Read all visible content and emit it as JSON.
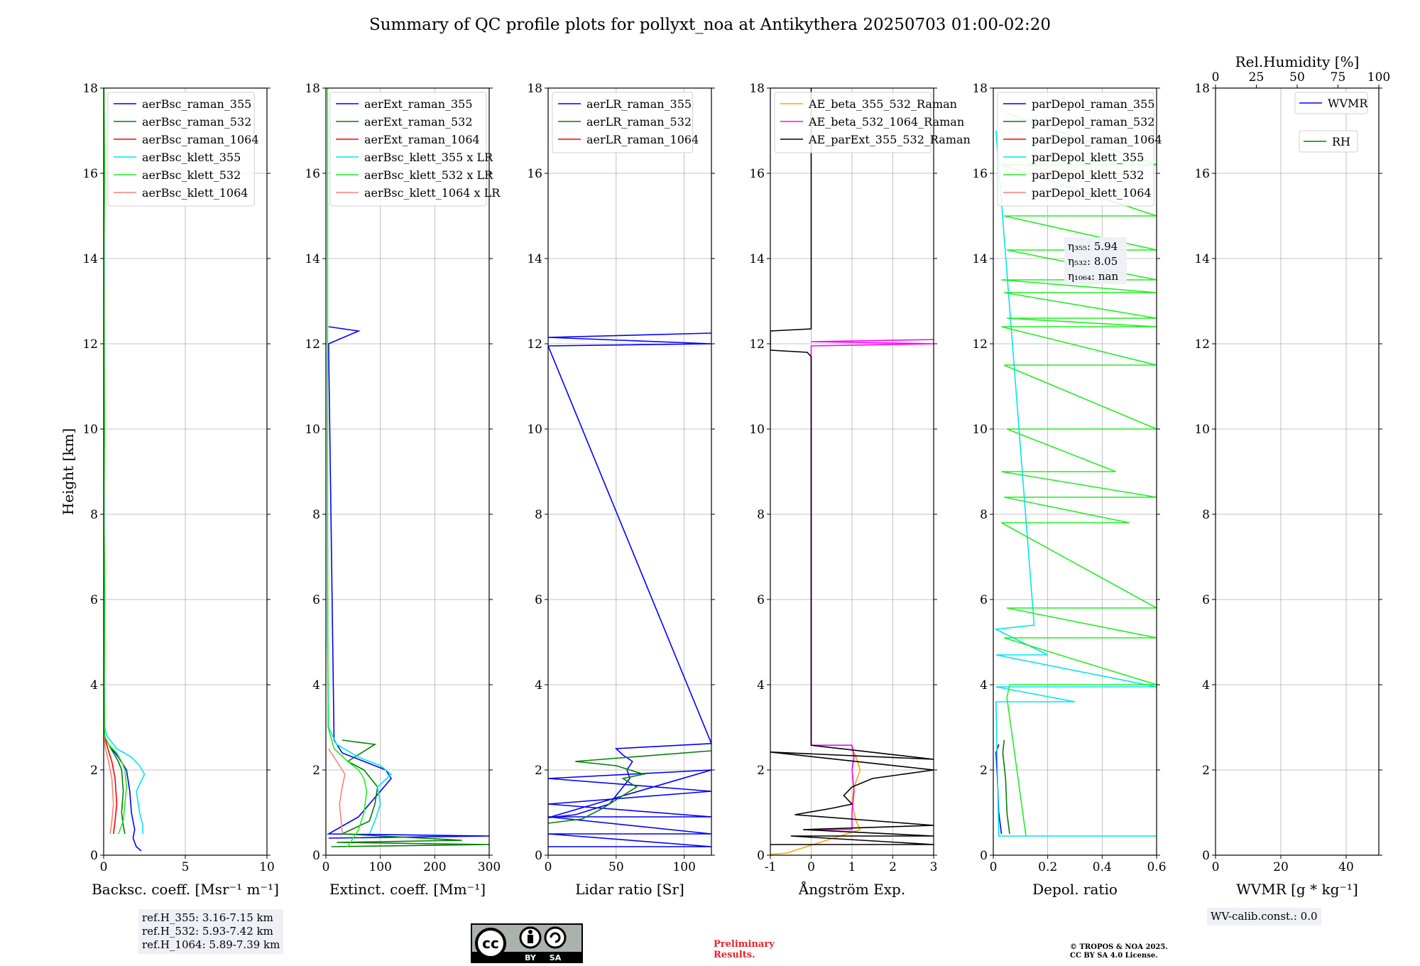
{
  "title": "Summary of QC profile plots for pollyxt_noa at Antikythera 20250703 01:00-02:20",
  "chart_data": [
    {
      "type": "line",
      "xlabel": "Backsc. coeff. [Msr⁻¹ m⁻¹]",
      "ylabel": "Height [km]",
      "xlim": [
        0,
        10
      ],
      "ylim": [
        0,
        18
      ],
      "xticks": [
        0,
        5,
        10
      ],
      "yticks": [
        0,
        2,
        4,
        6,
        8,
        10,
        12,
        14,
        16,
        18
      ],
      "grid": true,
      "legend_position": "upper-left",
      "series": [
        {
          "name": "aerBsc_raman_355",
          "color": "#0000ff",
          "x": [
            2.3,
            2.0,
            1.8,
            1.9,
            1.7,
            1.6,
            1.4,
            0.9,
            0.3,
            0.05,
            0.05
          ],
          "y": [
            0.1,
            0.2,
            0.4,
            0.6,
            1.0,
            1.5,
            2.0,
            2.3,
            2.6,
            2.8,
            3.0
          ]
        },
        {
          "name": "aerBsc_raman_532",
          "color": "#008000",
          "x": [
            1.3,
            1.2,
            1.1,
            1.2,
            1.1,
            0.9,
            0.6,
            0.3,
            0.05,
            0.05
          ],
          "y": [
            0.5,
            0.7,
            1.0,
            1.5,
            2.0,
            2.2,
            2.4,
            2.6,
            2.8,
            3.0
          ]
        },
        {
          "name": "aerBsc_raman_1064",
          "color": "#ff0000",
          "x": [
            0.6,
            0.7,
            0.8,
            0.7,
            0.5,
            0.25,
            0.05
          ],
          "y": [
            0.5,
            0.8,
            1.2,
            1.8,
            2.2,
            2.5,
            2.8
          ]
        },
        {
          "name": "aerBsc_klett_355",
          "color": "#00e5ee",
          "x": [
            2.4,
            2.4,
            2.2,
            2.0,
            2.5,
            2.2,
            1.7,
            0.8,
            0.2,
            0.05,
            0.03,
            0.03
          ],
          "y": [
            0.5,
            0.7,
            1.0,
            1.5,
            1.9,
            2.1,
            2.3,
            2.5,
            2.8,
            3.0,
            5.0,
            17.5
          ]
        },
        {
          "name": "aerBsc_klett_532",
          "color": "#22ee22",
          "x": [
            0.9,
            1.2,
            1.3,
            1.4,
            1.3,
            1.1,
            0.8,
            0.3,
            0.06,
            0.04,
            0.08,
            0.02,
            0.05,
            0.02,
            0.06,
            0.02
          ],
          "y": [
            0.5,
            0.8,
            1.2,
            1.6,
            2.0,
            2.2,
            2.4,
            2.6,
            2.8,
            4.0,
            6.0,
            8.0,
            10.0,
            14.0,
            16.0,
            18.0
          ]
        },
        {
          "name": "aerBsc_klett_1064",
          "color": "#fa8072",
          "x": [
            0.4,
            0.5,
            0.6,
            0.5,
            0.3,
            0.1,
            0.03
          ],
          "y": [
            0.5,
            0.8,
            1.2,
            1.8,
            2.2,
            2.5,
            2.8
          ]
        }
      ]
    },
    {
      "type": "line",
      "xlabel": "Extinct. coeff. [Mm⁻¹]",
      "xlim": [
        0,
        300
      ],
      "ylim": [
        0,
        18
      ],
      "xticks": [
        0,
        100,
        200,
        300
      ],
      "yticks": [
        0,
        2,
        4,
        6,
        8,
        10,
        12,
        14,
        16,
        18
      ],
      "grid": true,
      "legend_position": "upper-left",
      "series": [
        {
          "name": "aerExt_raman_355",
          "color": "#0000ff",
          "x": [
            5,
            300,
            5,
            60,
            80,
            100,
            120,
            110,
            70,
            30,
            20,
            15,
            5,
            60,
            5
          ],
          "y": [
            0.4,
            0.45,
            0.5,
            0.9,
            1.2,
            1.5,
            1.8,
            2.0,
            2.2,
            2.4,
            2.6,
            2.7,
            12.0,
            12.3,
            12.4
          ]
        },
        {
          "name": "aerExt_raman_532",
          "color": "#008000",
          "x": [
            10,
            300,
            20,
            250,
            30,
            80,
            90,
            95,
            70,
            40,
            90,
            30
          ],
          "y": [
            0.2,
            0.25,
            0.3,
            0.35,
            0.5,
            0.8,
            1.2,
            1.6,
            2.0,
            2.2,
            2.6,
            2.7
          ]
        },
        {
          "name": "aerExt_raman_1064",
          "color": "#ff0000",
          "x": [],
          "y": []
        },
        {
          "name": "aerBsc_klett_355 x LR",
          "color": "#00e5ee",
          "x": [
            80,
            90,
            100,
            95,
            120,
            100,
            60,
            20,
            5,
            3,
            3
          ],
          "y": [
            0.5,
            0.8,
            1.2,
            1.6,
            1.9,
            2.1,
            2.3,
            2.6,
            3.0,
            5.0,
            17.5
          ]
        },
        {
          "name": "aerBsc_klett_532 x LR",
          "color": "#22ee22",
          "x": [
            40,
            60,
            70,
            75,
            70,
            60,
            40,
            15,
            4,
            3,
            3
          ],
          "y": [
            0.2,
            0.6,
            1.0,
            1.5,
            1.8,
            2.0,
            2.2,
            2.5,
            3.0,
            8.0,
            18.0
          ]
        },
        {
          "name": "aerBsc_klett_1064 x LR",
          "color": "#fa8072",
          "x": [
            30,
            28,
            25,
            30,
            35,
            20,
            5
          ],
          "y": [
            0.5,
            0.8,
            1.2,
            1.6,
            1.9,
            2.2,
            2.5
          ]
        }
      ]
    },
    {
      "type": "line",
      "xlabel": "Lidar ratio [Sr]",
      "xlim": [
        0,
        120
      ],
      "ylim": [
        0,
        18
      ],
      "xticks": [
        0,
        50,
        100
      ],
      "yticks": [
        0,
        2,
        4,
        6,
        8,
        10,
        12,
        14,
        16,
        18
      ],
      "grid": true,
      "legend_position": "upper-left",
      "series": [
        {
          "name": "aerLR_raman_355",
          "color": "#0000ff",
          "x": [
            0,
            120,
            0,
            120,
            0,
            120,
            0,
            120,
            0,
            120,
            0,
            20,
            45,
            55,
            60,
            58,
            62,
            55,
            50,
            120,
            0,
            120,
            0,
            120
          ],
          "y": [
            0.2,
            0.2,
            0.5,
            0.5,
            0.9,
            0.9,
            1.2,
            1.5,
            1.8,
            2.0,
            0.88,
            0.95,
            1.2,
            1.6,
            1.8,
            2.0,
            2.2,
            2.35,
            2.5,
            2.62,
            11.95,
            12.0,
            12.15,
            12.25
          ]
        },
        {
          "name": "aerLR_raman_532",
          "color": "#008000",
          "x": [
            0,
            25,
            40,
            55,
            65,
            55,
            70,
            50,
            20,
            60,
            120
          ],
          "y": [
            0.75,
            0.85,
            1.1,
            1.4,
            1.6,
            1.8,
            1.9,
            2.1,
            2.2,
            2.3,
            2.45
          ]
        },
        {
          "name": "aerLR_raman_1064",
          "color": "#ff0000",
          "x": [],
          "y": []
        }
      ]
    },
    {
      "type": "line",
      "xlabel": "Ångström Exp.",
      "xlim": [
        -1,
        3
      ],
      "ylim": [
        0,
        18
      ],
      "xticks": [
        -1,
        0,
        1,
        2,
        3
      ],
      "yticks": [
        0,
        2,
        4,
        6,
        8,
        10,
        12,
        14,
        16,
        18
      ],
      "grid": true,
      "legend_position": "upper-left",
      "series": [
        {
          "name": "AE_beta_355_532_Raman",
          "color": "#ffa500",
          "x": [
            -1,
            -0.6,
            1.2,
            1.1,
            1.0,
            1.05,
            1.2,
            1.1,
            1.0,
            1.0
          ],
          "y": [
            0.02,
            0.05,
            0.6,
            0.8,
            1.2,
            1.6,
            2.0,
            2.3,
            2.5,
            2.58
          ]
        },
        {
          "name": "AE_beta_532_1064_Raman",
          "color": "#ff00ff",
          "x": [
            0.0,
            1.0,
            1.0,
            1.05,
            1.0,
            1.05,
            1.0,
            1.0,
            0.0,
            0.0,
            3.0,
            0.0,
            3.0
          ],
          "y": [
            0.6,
            0.6,
            1.0,
            1.5,
            2.0,
            2.3,
            2.58,
            2.58,
            2.58,
            11.95,
            12.0,
            12.05,
            12.1
          ]
        },
        {
          "name": "AE_parExt_355_532_Raman",
          "color": "#000000",
          "x": [
            -1,
            3,
            -0.5,
            3,
            -0.2,
            3,
            -0.4,
            0.5,
            1.0,
            0.8,
            1.0,
            1.5,
            3,
            -1,
            3,
            0.0,
            0.0,
            -0.1,
            -1,
            -1,
            0.0,
            0.0
          ],
          "y": [
            0.25,
            0.25,
            0.45,
            0.45,
            0.6,
            0.7,
            0.95,
            1.1,
            1.2,
            1.4,
            1.6,
            1.8,
            2.0,
            2.42,
            2.25,
            2.58,
            11.7,
            11.8,
            11.85,
            12.3,
            12.35,
            18.0
          ]
        }
      ]
    },
    {
      "type": "line",
      "xlabel": "Depol. ratio",
      "xlim": [
        0,
        0.6
      ],
      "ylim": [
        0,
        18
      ],
      "xticks": [
        0.0,
        0.2,
        0.4,
        0.6
      ],
      "yticks": [
        0,
        2,
        4,
        6,
        8,
        10,
        12,
        14,
        16,
        18
      ],
      "grid": true,
      "legend_position": "upper-left",
      "annotations": [
        "η₃₅₅: 5.94",
        "η₅₃₂: 8.05",
        "η₁₀₆₄: nan"
      ],
      "series": [
        {
          "name": "parDepol_raman_355",
          "color": "#0000ff",
          "x": [
            0.03,
            0.02,
            0.015,
            0.01,
            0.02
          ],
          "y": [
            0.5,
            1.0,
            1.8,
            2.4,
            2.6
          ]
        },
        {
          "name": "parDepol_raman_532",
          "color": "#008000",
          "x": [
            0.06,
            0.05,
            0.045,
            0.035,
            0.04
          ],
          "y": [
            0.5,
            1.0,
            1.8,
            2.4,
            2.7
          ]
        },
        {
          "name": "parDepol_raman_1064",
          "color": "#ff0000",
          "x": [],
          "y": []
        },
        {
          "name": "parDepol_klett_355",
          "color": "#00e5ee",
          "x": [
            0.6,
            0.02,
            0.01,
            0.3,
            0.01,
            0.6,
            0.01,
            0.2,
            0.01,
            0.15,
            0.01
          ],
          "y": [
            0.45,
            0.45,
            3.6,
            3.6,
            3.95,
            3.95,
            4.7,
            4.7,
            5.3,
            5.4,
            17.0
          ]
        },
        {
          "name": "parDepol_klett_532",
          "color": "#22ee22",
          "x": [
            0.12,
            0.05,
            0.06,
            0.6,
            0.04,
            0.6,
            0.05,
            0.6,
            0.03,
            0.5,
            0.04,
            0.6,
            0.03,
            0.45,
            0.05,
            0.6,
            0.04,
            0.6,
            0.03,
            0.6,
            0.05,
            0.6,
            0.04,
            0.6,
            0.03,
            0.6,
            0.05,
            0.6,
            0.04,
            0.6,
            0.03,
            0.6,
            0.05
          ],
          "y": [
            0.45,
            3.7,
            4.0,
            4.0,
            5.1,
            5.1,
            5.8,
            5.8,
            7.8,
            7.8,
            8.4,
            8.4,
            9.0,
            9.0,
            10.0,
            10.0,
            11.5,
            11.5,
            12.4,
            12.4,
            12.6,
            12.6,
            13.2,
            13.2,
            13.5,
            13.5,
            14.2,
            14.2,
            15.0,
            15.0,
            16.2,
            16.2,
            17.4
          ]
        },
        {
          "name": "parDepol_klett_1064",
          "color": "#fa8072",
          "x": [],
          "y": []
        }
      ]
    },
    {
      "type": "line",
      "xlabel": "WVMR [g * kg⁻¹]",
      "x2label": "Rel.Humidity [%]",
      "xlim": [
        0,
        50
      ],
      "x2lim": [
        0,
        100
      ],
      "ylim": [
        0,
        18
      ],
      "xticks": [
        0,
        20,
        40
      ],
      "x2ticks": [
        0,
        25,
        50,
        75,
        100
      ],
      "yticks": [
        0,
        2,
        4,
        6,
        8,
        10,
        12,
        14,
        16,
        18
      ],
      "grid": true,
      "legend_position": "upper-right",
      "series": [
        {
          "name": "WVMR",
          "color": "#0000ff",
          "x": [],
          "y": []
        },
        {
          "name": "RH",
          "color": "#008000",
          "x": [],
          "y": []
        }
      ]
    }
  ],
  "info_boxes": {
    "ref_h": [
      "ref.H_355: 3.16-7.15 km",
      "ref.H_532: 5.93-7.42 km",
      "ref.H_1064: 5.89-7.39 km"
    ],
    "wv_calib": "WV-calib.const.: 0.0"
  },
  "license": {
    "cc_by": "BY",
    "cc_sa": "SA",
    "preliminary": [
      "Preliminary",
      "Results."
    ],
    "copyright": [
      "© TROPOS & NOA 2025.",
      "CC BY SA 4.0 License."
    ]
  }
}
